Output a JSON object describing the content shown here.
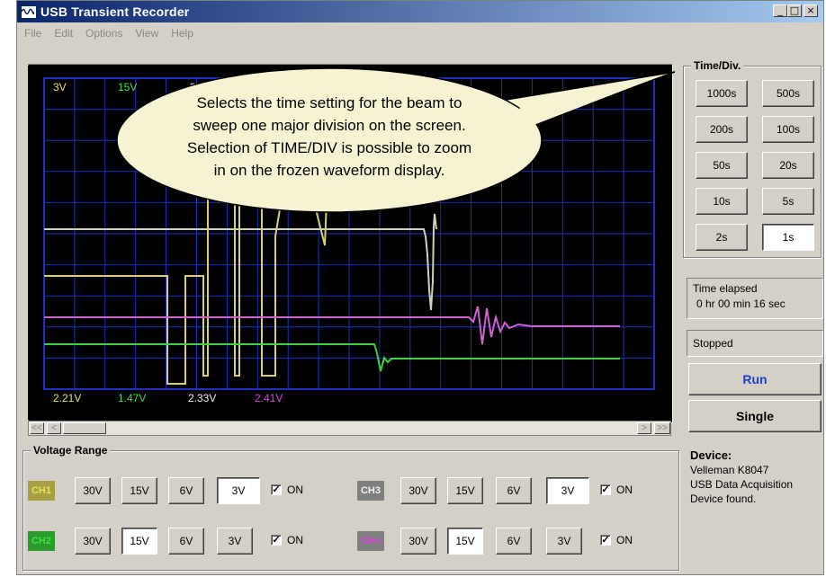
{
  "app": {
    "title": "USB Transient Recorder"
  },
  "window_buttons": {
    "minimize": "_",
    "maximize": "□",
    "close": "×"
  },
  "menu": [
    "File",
    "Edit",
    "Options",
    "View",
    "Help"
  ],
  "scope": {
    "top_labels": [
      {
        "text": "3V",
        "color": "#e8e060"
      },
      {
        "text": "15V",
        "color": "#40e040"
      },
      {
        "text": "3V",
        "color": "#f0f0f0"
      }
    ],
    "bottom_labels": [
      {
        "text": "2.21V",
        "color": "#e8e060"
      },
      {
        "text": "1.47V",
        "color": "#40e040"
      },
      {
        "text": "2.33V",
        "color": "#f0f0f0"
      },
      {
        "text": "2.41V",
        "color": "#e040e0"
      }
    ],
    "grid_color": "#2030c0"
  },
  "callout": {
    "lines": [
      "Selects the time setting for the beam to",
      "sweep one major division on the screen.",
      "Selection of TIME/DIV is possible to zoom",
      "in on the frozen waveform display."
    ]
  },
  "scrollbar": {
    "left_fast": "<<",
    "left": "<",
    "right": ">",
    "right_fast": ">>"
  },
  "time_div": {
    "title": "Time/Div.",
    "buttons": [
      "1000s",
      "500s",
      "200s",
      "100s",
      "50s",
      "20s",
      "10s",
      "5s",
      "2s",
      "1s"
    ],
    "selected": "1s"
  },
  "status": {
    "time_elapsed_label": "Time elapsed",
    "time_elapsed_value": "0 hr  00 min  16 sec",
    "state": "Stopped"
  },
  "controls": {
    "run": "Run",
    "single": "Single"
  },
  "device": {
    "label": "Device:",
    "lines": [
      "Velleman  K8047",
      "USB Data Acquisition",
      "Device found."
    ]
  },
  "voltage_range": {
    "title": "Voltage Range",
    "options": [
      "30V",
      "15V",
      "6V",
      "3V"
    ],
    "on_label": "ON",
    "channels": [
      {
        "name": "CH1",
        "color": "#e8e060",
        "selected": "3V"
      },
      {
        "name": "CH2",
        "color": "#40e040",
        "selected": "15V"
      },
      {
        "name": "CH3",
        "color": "#f0f0f0",
        "selected": "3V"
      },
      {
        "name": "CH4",
        "color": "#e040e0",
        "selected": "15V"
      }
    ]
  }
}
